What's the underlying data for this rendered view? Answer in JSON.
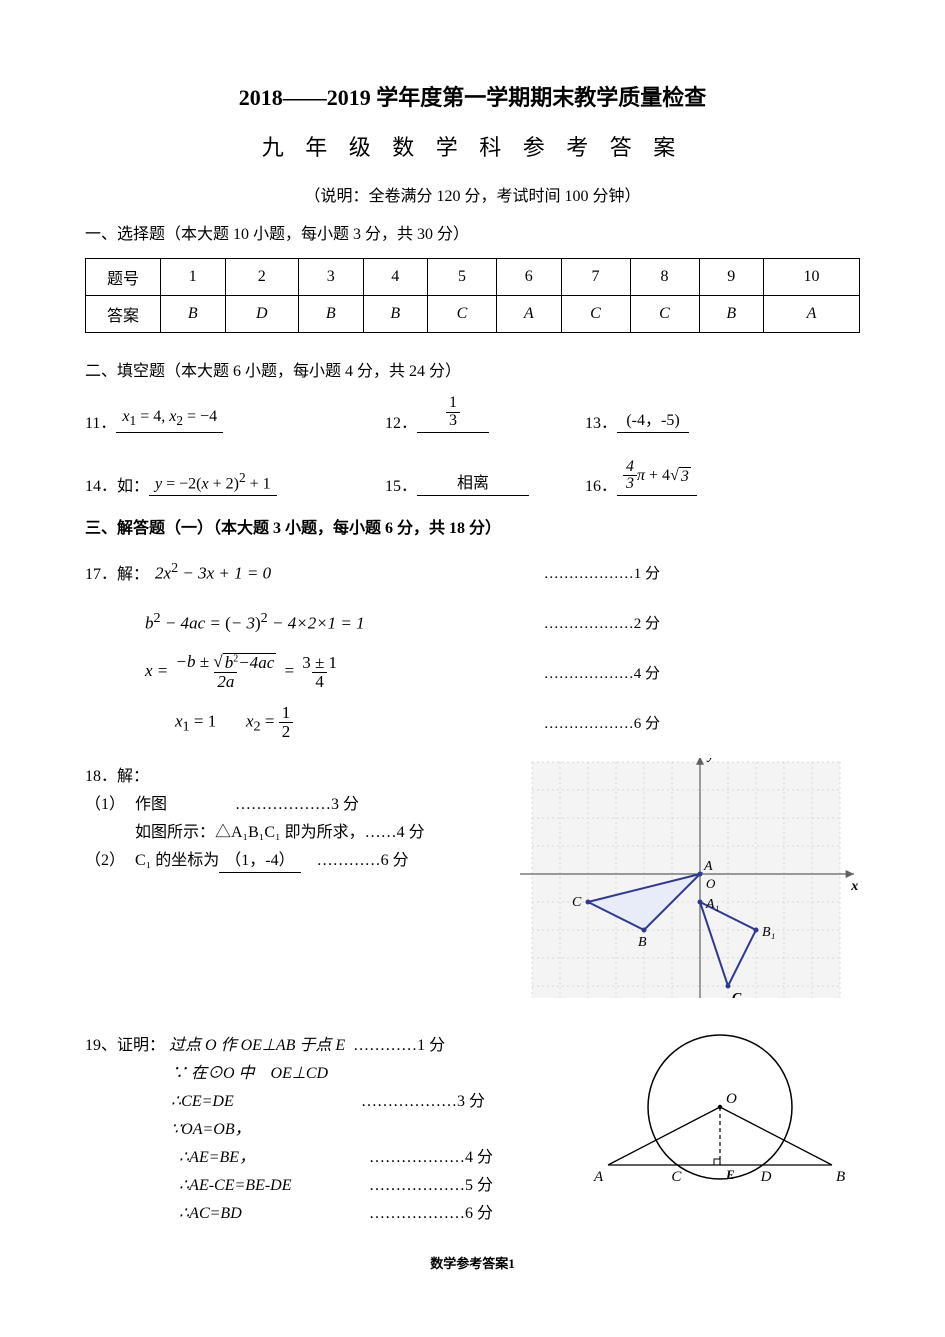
{
  "title": "2018——2019 学年度第一学期期末教学质量检查",
  "subtitle": "九 年 级 数 学 科 参 考 答 案",
  "note": "（说明：全卷满分 120 分，考试时间 100 分钟）",
  "section1": {
    "head": "一、选择题（本大题 10 小题，每小题 3 分，共 30 分）",
    "row_label": "题号",
    "ans_label": "答案",
    "nums": [
      "1",
      "2",
      "3",
      "4",
      "5",
      "6",
      "7",
      "8",
      "9",
      "10"
    ],
    "answers": [
      "B",
      "D",
      "B",
      "B",
      "C",
      "A",
      "C",
      "C",
      "B",
      "A"
    ]
  },
  "section2": {
    "head": "二、填空题（本大题 6 小题，每小题 4 分，共 24 分）",
    "q11": {
      "n": "11．",
      "ans_x1": "x",
      "ans_text1": " = 4, ",
      "ans_x2": "x",
      "ans_text2": " = −4",
      "sub1": "1",
      "sub2": "2"
    },
    "q12": {
      "n": "12．",
      "num": "1",
      "den": "3"
    },
    "q13": {
      "n": "13．",
      "ans": "(-4，-5)"
    },
    "q14": {
      "n": "14．如：",
      "y": "y",
      "eq": " = −2(",
      "x": "x",
      "rest": " + 2)",
      "sq": "2",
      "tail": " + 1"
    },
    "q15": {
      "n": "15．",
      "ans": "相离"
    },
    "q16": {
      "n": "16．",
      "num": "4",
      "den": "3",
      "pi": "π",
      "plus": " + 4",
      "rad": "3"
    }
  },
  "section3": {
    "head": "三、解答题（一）（本大题 3 小题，每小题 6 分，共 18 分）"
  },
  "q17": {
    "label": "17．解：",
    "l1": {
      "eq": "2x² − 3x + 1 = 0",
      "pts": "1 分"
    },
    "l2": {
      "lhs": "b² − 4ac = ",
      "mid": "(− 3)² − 4×2×1 = 1",
      "pts": "2 分"
    },
    "l3": {
      "x": "x = ",
      "num": "−b ± √(b²−4ac)",
      "den": "2a",
      "eq2": " = ",
      "num2": "3 ± 1",
      "den2": "4",
      "pts": "4 分"
    },
    "l4": {
      "x1": "x",
      "s1": "1",
      "e1": " = 1",
      "x2": "x",
      "s2": "2",
      "e2": " = ",
      "num": "1",
      "den": "2",
      "pts": "6 分"
    }
  },
  "q18": {
    "label": "18．解：",
    "p1_num": "（1）",
    "p1_a": "作图",
    "p1_pts": "………………3 分",
    "p1_b": "如图所示：△A₁B₁C₁ 即为所求，……4 分",
    "p2_num": "（2）",
    "p2_a": "C₁ 的坐标为",
    "p2_ans": "（1，-4）",
    "p2_pts": "…………6 分",
    "grid": {
      "bg": "#f4f4f4",
      "grid_color": "#d9d9d9",
      "axis_color": "#606060",
      "stroke": "#2e3a8c",
      "fill": "#e8ecf8",
      "A": [
        0,
        0
      ],
      "B": [
        -2,
        -2
      ],
      "C": [
        -4,
        -1
      ],
      "A1": [
        0,
        -1
      ],
      "B1": [
        2,
        -2
      ],
      "C1": [
        1,
        -4
      ],
      "lbl": {
        "A": "A",
        "B": "B",
        "C": "C",
        "A1": "A₁",
        "B1": "B₁",
        "C1": "C₁",
        "O": "O",
        "x": "x",
        "y": "y"
      }
    }
  },
  "q19": {
    "label": "19、证明：",
    "l1": {
      "t": "过点 O 作 OE⊥AB 于点 E",
      "p": "…………1 分"
    },
    "l2": {
      "t": "∵ 在⊙O 中　OE⊥CD"
    },
    "l3": {
      "t": "∴CE=DE",
      "p": "………………3 分"
    },
    "l4": {
      "t": "∵OA=OB，"
    },
    "l5": {
      "t": "∴AE=BE，",
      "p": "………………4 分"
    },
    "l6": {
      "t": "∴AE-CE=BE-DE",
      "p": "………………5 分"
    },
    "l7": {
      "t": "∴AC=BD",
      "p": "………………6 分"
    },
    "fig": {
      "stroke": "#000000",
      "lbl": {
        "O": "O",
        "A": "A",
        "B": "B",
        "C": "C",
        "D": "D",
        "E": "E"
      }
    }
  },
  "footer": "数学参考答案1"
}
